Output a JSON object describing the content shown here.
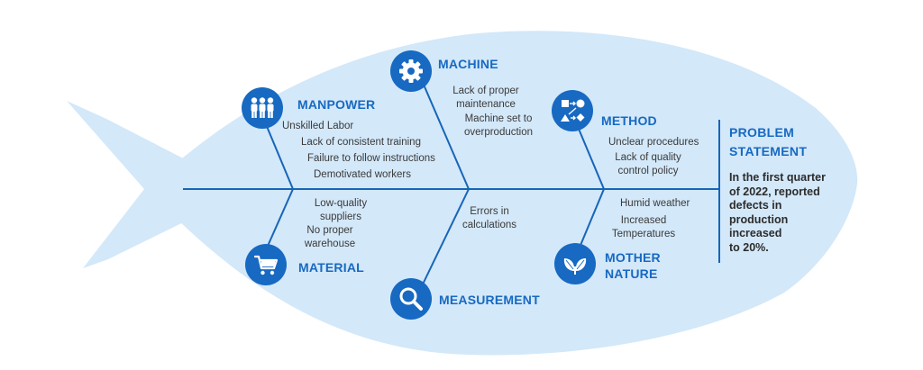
{
  "categories": {
    "manpower": {
      "title": "MANPOWER",
      "icon": "team-people-icon",
      "causes": [
        "Unskilled Labor",
        "Lack of consistent training",
        "Failure to follow instructions",
        "Demotivated workers"
      ]
    },
    "machine": {
      "title": "MACHINE",
      "icon": "gear-icon",
      "causes": [
        "Lack of proper\nmaintenance",
        "Machine set to\noverproduction"
      ]
    },
    "method": {
      "title": "METHOD",
      "icon": "process-shapes-icon",
      "causes": [
        "Unclear procedures",
        "Lack of quality\ncontrol policy"
      ]
    },
    "material": {
      "title": "MATERIAL",
      "icon": "shopping-cart-icon",
      "causes": [
        "Low-quality\nsuppliers",
        "No proper\nwarehouse"
      ]
    },
    "measurement": {
      "title": "MEASUREMENT",
      "icon": "magnifier-icon",
      "causes": [
        "Errors in\ncalculations"
      ]
    },
    "mother_nature": {
      "title": "MOTHER\nNATURE",
      "icon": "leaf-sprout-icon",
      "causes": [
        "Humid weather",
        "Increased\nTemperatures"
      ]
    }
  },
  "problem": {
    "title": "PROBLEM\nSTATEMENT",
    "statement": "In the first quarter\nof 2022, reported\ndefects in\nproduction\nincreased\nto 20%."
  },
  "colors": {
    "fish_body": "#d3e8f9",
    "accent": "#1769c2",
    "text": "#3a3a3a"
  }
}
